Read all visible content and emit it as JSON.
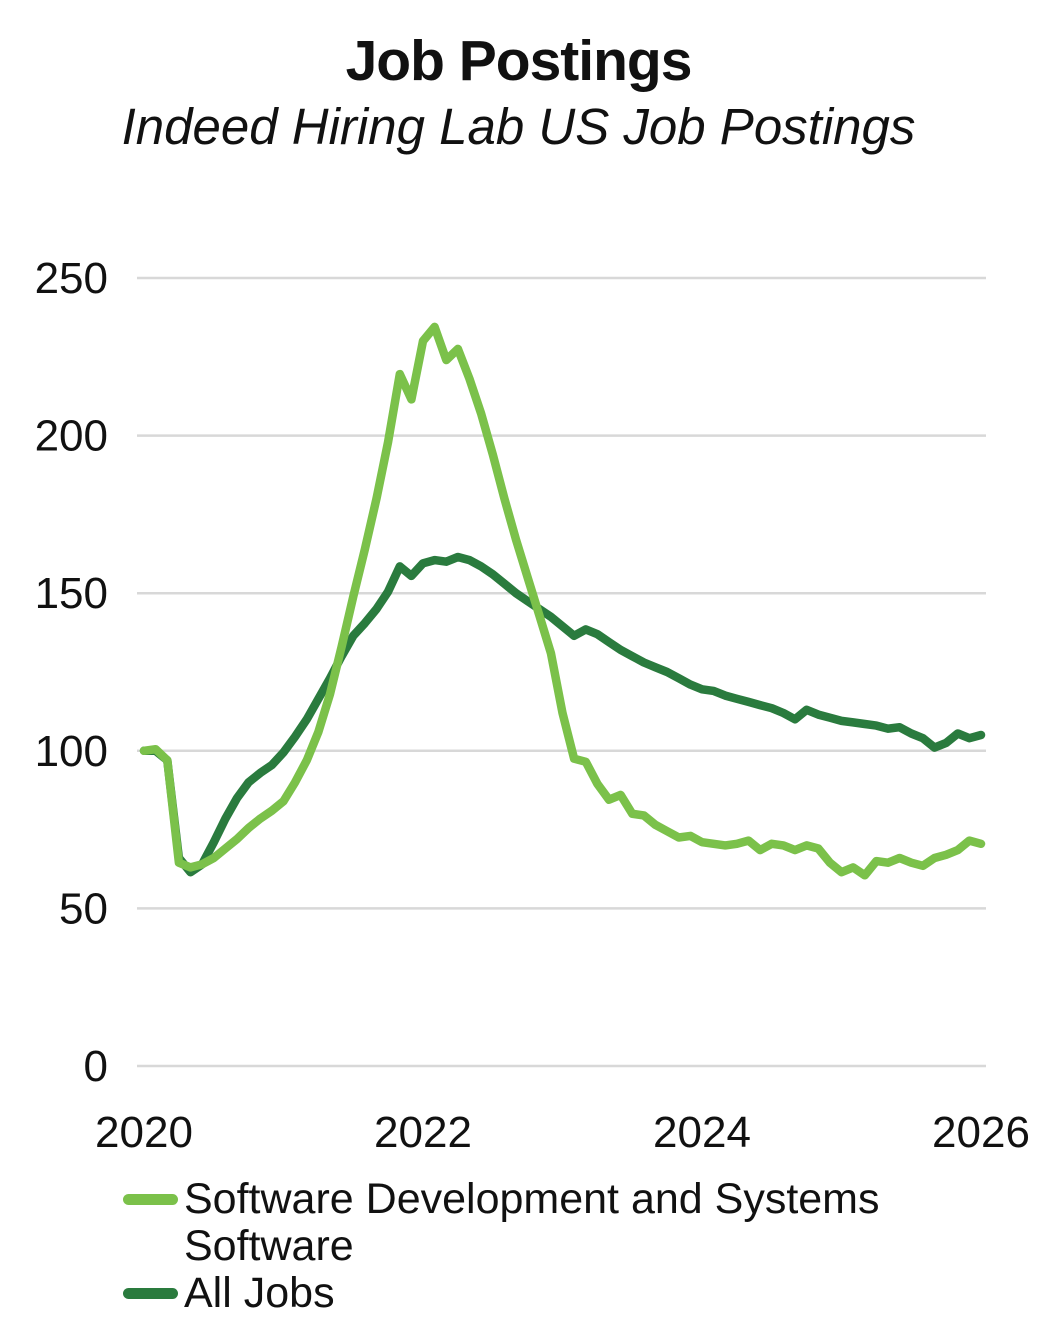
{
  "chart_data": {
    "type": "line",
    "title": "Job Postings",
    "subtitle": "Indeed Hiring Lab US Job Postings",
    "x_unit": "monthly index points, Jan 2020 through Jan 2026",
    "x_ticks": [
      {
        "label": "2020",
        "month": 0
      },
      {
        "label": "2022",
        "month": 24
      },
      {
        "label": "2024",
        "month": 48
      },
      {
        "label": "2026",
        "month": 72
      }
    ],
    "y_ticks": [
      0,
      50,
      100,
      150,
      200,
      250
    ],
    "ylim": [
      0,
      250
    ],
    "grid": "horizontal",
    "legend_position": "bottom-left",
    "gridline_color": "#D8D8D8",
    "text_color": "#111111",
    "series": [
      {
        "name": "Software Development and Systems Software",
        "color": "#7BC14A",
        "values": [
          100,
          100.5,
          97,
          64.5,
          63,
          64,
          66,
          69,
          72,
          75.5,
          78.5,
          81,
          84,
          90,
          97,
          106,
          118,
          133,
          149,
          164,
          180,
          198,
          219.5,
          211.5,
          230,
          234.5,
          224,
          227.5,
          218,
          207,
          194,
          180,
          167,
          155,
          143,
          131,
          112,
          97.5,
          96.5,
          89.5,
          84.5,
          86,
          80,
          79.5,
          76.5,
          74.5,
          72.5,
          73,
          71,
          70.5,
          70,
          70.5,
          71.5,
          68.5,
          70.5,
          70,
          68.5,
          70,
          69,
          64.5,
          61.5,
          63,
          60.5,
          65,
          64.5,
          66,
          64.5,
          63.5,
          66,
          67,
          68.5,
          71.5,
          70.5
        ]
      },
      {
        "name": "All Jobs",
        "color": "#2A7B3E",
        "values": [
          100,
          100,
          97,
          66,
          61.5,
          64,
          71,
          78.5,
          85,
          90,
          93,
          95.5,
          99.5,
          104.5,
          110,
          116.5,
          123,
          130,
          136.5,
          140.5,
          145,
          150.5,
          158.5,
          155.5,
          159.5,
          160.5,
          160,
          161.5,
          160.5,
          158.5,
          156,
          153,
          150,
          147.5,
          145,
          142.5,
          139.5,
          136.5,
          138.5,
          137,
          134.5,
          132,
          130,
          128,
          126.5,
          125,
          123,
          121,
          119.5,
          119,
          117.5,
          116.5,
          115.5,
          114.5,
          113.5,
          112,
          110,
          113,
          111.5,
          110.5,
          109.5,
          109,
          108.5,
          108,
          107,
          107.5,
          105.5,
          104,
          101,
          102.5,
          105.5,
          104,
          105
        ]
      }
    ]
  }
}
